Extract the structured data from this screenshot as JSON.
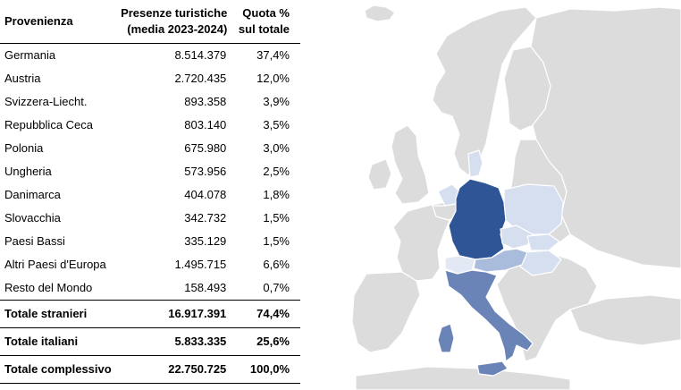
{
  "table": {
    "headers": {
      "provenienza": "Provenienza",
      "presenze_line1": "Presenze turistiche",
      "presenze_line2": "(media 2023-2024)",
      "quota_line1": "Quota %",
      "quota_line2": "sul totale"
    },
    "rows": [
      {
        "country": "Germania",
        "presenze": "8.514.379",
        "quota": "37,4%"
      },
      {
        "country": "Austria",
        "presenze": "2.720.435",
        "quota": "12,0%"
      },
      {
        "country": "Svizzera-Liecht.",
        "presenze": "893.358",
        "quota": "3,9%"
      },
      {
        "country": "Repubblica Ceca",
        "presenze": "803.140",
        "quota": "3,5%"
      },
      {
        "country": "Polonia",
        "presenze": "675.980",
        "quota": "3,0%"
      },
      {
        "country": "Ungheria",
        "presenze": "573.956",
        "quota": "2,5%"
      },
      {
        "country": "Danimarca",
        "presenze": "404.078",
        "quota": "1,8%"
      },
      {
        "country": "Slovacchia",
        "presenze": "342.732",
        "quota": "1,5%"
      },
      {
        "country": "Paesi Bassi",
        "presenze": "335.129",
        "quota": "1,5%"
      },
      {
        "country": "Altri Paesi d'Europa",
        "presenze": "1.495.715",
        "quota": "6,6%"
      },
      {
        "country": "Resto del Mondo",
        "presenze": "158.493",
        "quota": "0,7%"
      }
    ],
    "totals": [
      {
        "label": "Totale stranieri",
        "presenze": "16.917.391",
        "quota": "74,4%"
      },
      {
        "label": "Totale italiani",
        "presenze": "5.833.335",
        "quota": "25,6%"
      },
      {
        "label": "Totale complessivo",
        "presenze": "22.750.725",
        "quota": "100,0%"
      }
    ]
  },
  "map": {
    "colors": {
      "background_land": "#dcdcdc",
      "border": "#ffffff",
      "germany": "#2f5597",
      "italy": "#6b84b8",
      "austria": "#a9bcdb",
      "light": "#d6dff0",
      "lightest": "#e3e9f4"
    }
  }
}
